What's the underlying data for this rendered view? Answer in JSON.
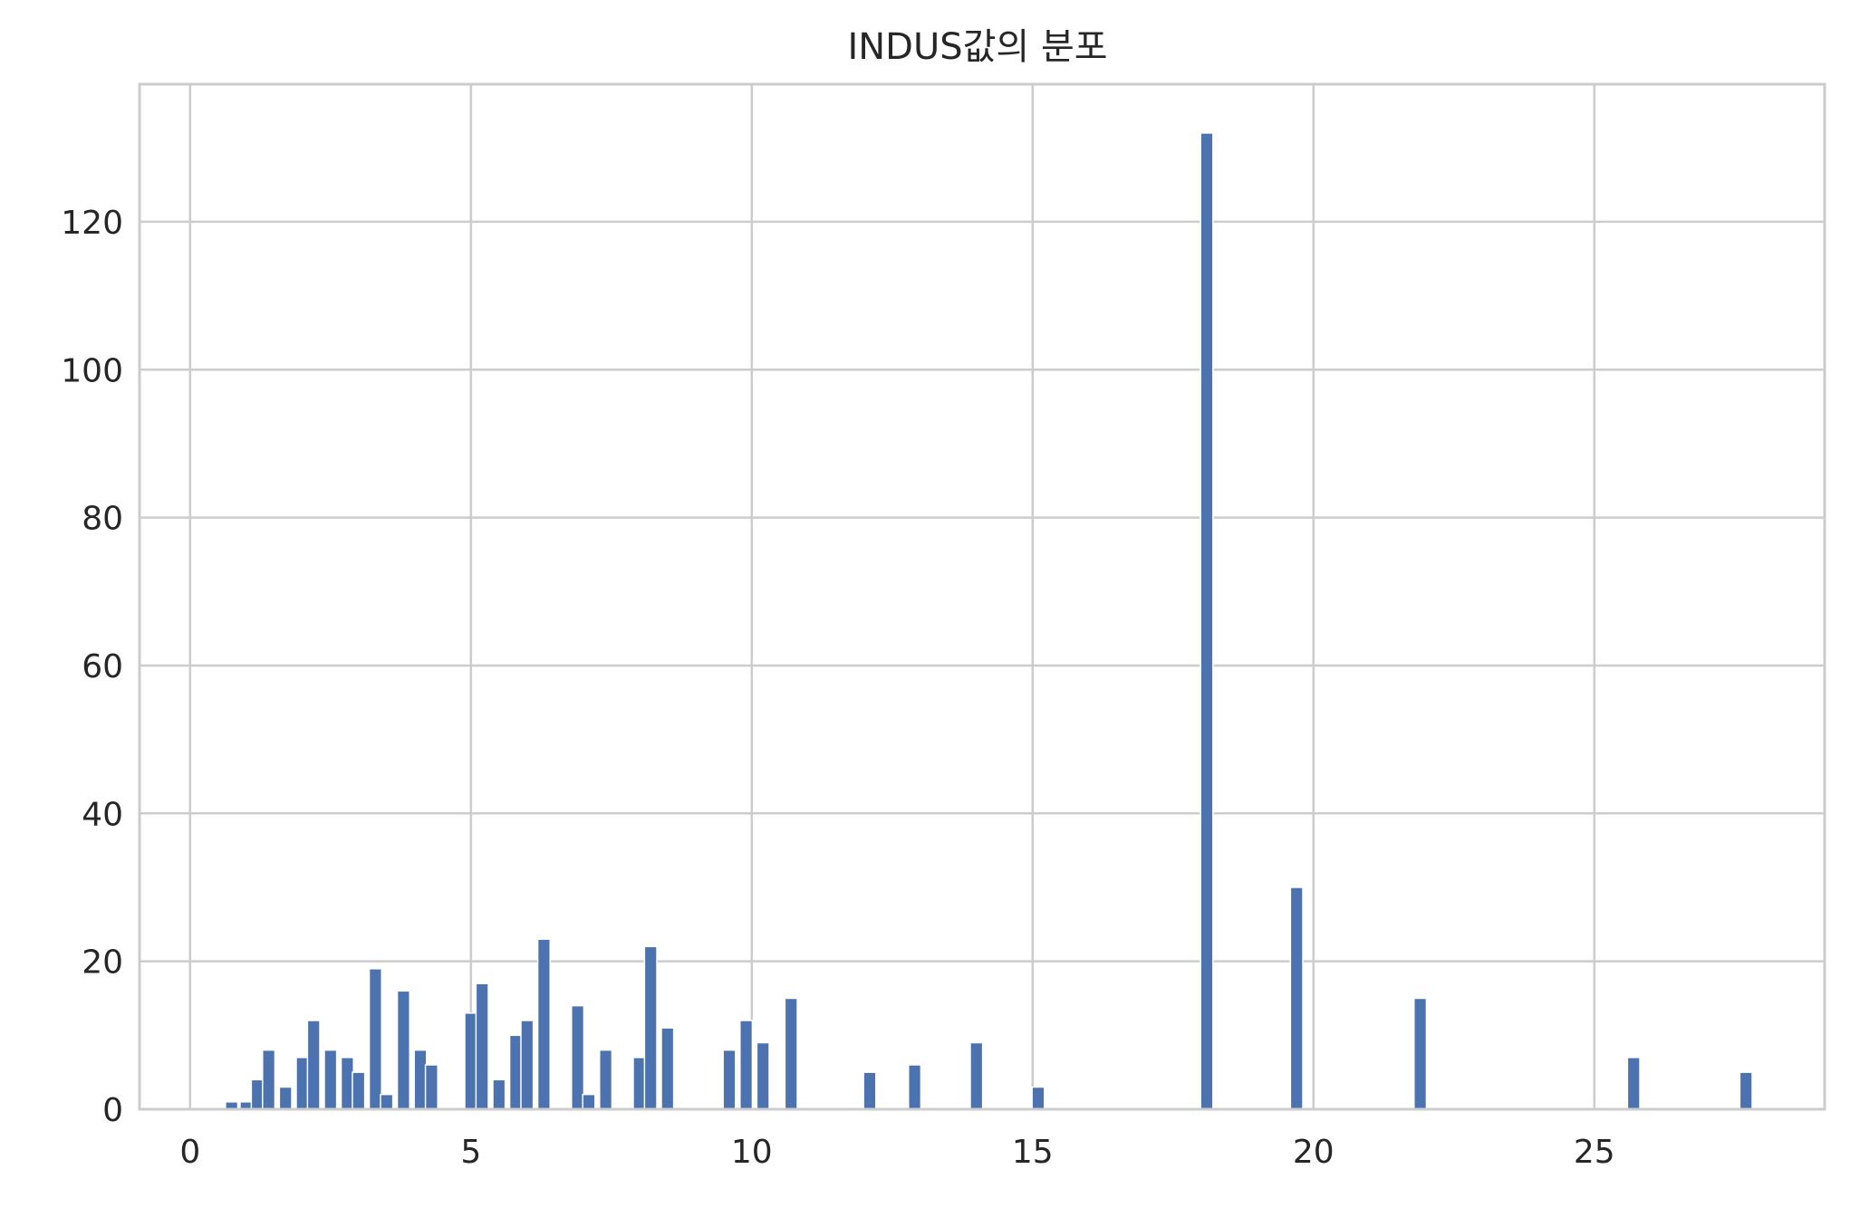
{
  "chart_data": {
    "type": "bar",
    "title": "INDUS값의 분포",
    "xlabel": "",
    "ylabel": "",
    "xlim": [
      -0.9,
      29.1
    ],
    "ylim": [
      0,
      138.6
    ],
    "xticks": [
      0,
      5,
      10,
      15,
      20,
      25
    ],
    "xtick_labels": [
      "0",
      "5",
      "10",
      "15",
      "20",
      "25"
    ],
    "yticks": [
      0,
      20,
      40,
      60,
      80,
      100,
      120
    ],
    "ytick_labels": [
      "0",
      "20",
      "40",
      "60",
      "80",
      "100",
      "120"
    ],
    "grid": true,
    "bar_color": "#4c72b0",
    "grid_color": "#cccccc",
    "bar_width": 0.22,
    "x": [
      0.74,
      1.0,
      1.2,
      1.4,
      1.7,
      2.0,
      2.2,
      2.5,
      2.8,
      3.0,
      3.3,
      3.5,
      3.8,
      4.1,
      4.3,
      5.0,
      5.2,
      5.5,
      5.8,
      6.0,
      6.3,
      6.9,
      7.1,
      7.4,
      8.0,
      8.2,
      8.5,
      9.6,
      9.9,
      10.2,
      10.7,
      12.1,
      12.9,
      14.0,
      15.1,
      18.1,
      19.7,
      21.9,
      25.7,
      27.7
    ],
    "values": [
      1,
      1,
      4,
      8,
      3,
      7,
      12,
      8,
      7,
      5,
      19,
      2,
      16,
      8,
      6,
      13,
      17,
      4,
      10,
      12,
      23,
      14,
      2,
      8,
      7,
      22,
      11,
      8,
      12,
      9,
      15,
      5,
      6,
      9,
      3,
      132,
      30,
      15,
      7,
      5
    ]
  }
}
